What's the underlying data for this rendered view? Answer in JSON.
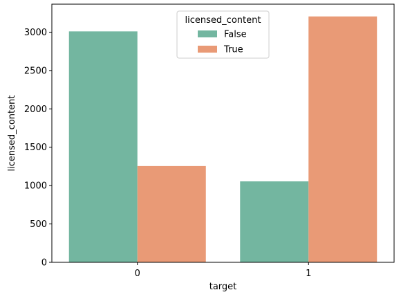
{
  "chart_data": {
    "type": "bar",
    "categories": [
      "0",
      "1"
    ],
    "series": [
      {
        "name": "False",
        "values": [
          3010,
          1055
        ],
        "color": "#73b6a0"
      },
      {
        "name": "True",
        "values": [
          1255,
          3205
        ],
        "color": "#e99a76"
      }
    ],
    "xlabel": "target",
    "ylabel": "licensed_content",
    "ylim": [
      0,
      3365
    ],
    "yticks": [
      0,
      500,
      1000,
      1500,
      2000,
      2500,
      3000
    ],
    "legend": {
      "title": "licensed_content",
      "placement": "top-center"
    },
    "grid": false
  }
}
